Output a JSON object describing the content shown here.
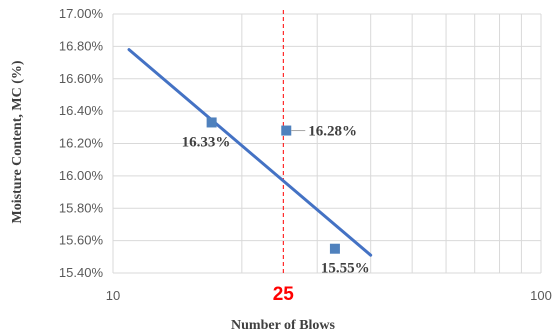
{
  "chart_data": {
    "type": "scatter",
    "xlabel": "Number of Blows",
    "ylabel": "Moisture Content, MC (%)",
    "x_scale": "log",
    "xlim": [
      10,
      100
    ],
    "ylim": [
      15.4,
      17.0
    ],
    "x_ticks": [
      10,
      100
    ],
    "x_tick_labels": [
      "10",
      "100"
    ],
    "y_ticks": [
      15.4,
      15.6,
      15.8,
      16.0,
      16.2,
      16.4,
      16.6,
      16.8,
      17.0
    ],
    "y_tick_labels": [
      "15.40%",
      "15.60%",
      "15.80%",
      "16.00%",
      "16.20%",
      "16.40%",
      "16.60%",
      "16.80%",
      "17.00%"
    ],
    "grid": true,
    "series": [
      {
        "x": [
          17,
          25.4,
          33
        ],
        "y": [
          16.33,
          16.28,
          15.55
        ],
        "labels": [
          "16.33%",
          "16.28%",
          "15.55%"
        ],
        "color": "#4f81bd"
      }
    ],
    "trendline": {
      "x": [
        10.9,
        40
      ],
      "y": [
        16.78,
        15.51
      ],
      "color": "#4472c4"
    },
    "reference_line": {
      "x": 25,
      "label": "25",
      "color": "#ff0000"
    }
  }
}
